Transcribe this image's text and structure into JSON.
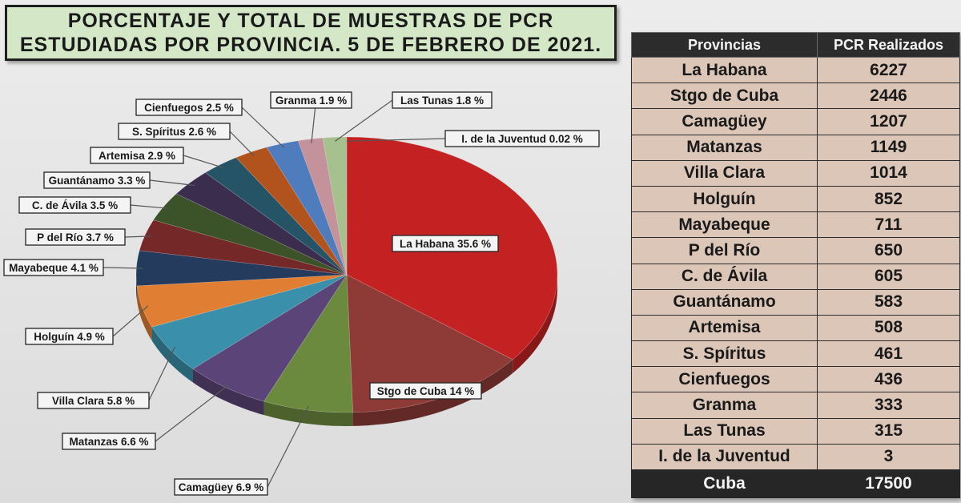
{
  "title": {
    "line1": "PORCENTAJE Y TOTAL DE MUESTRAS DE PCR",
    "line2": "ESTUDIADAS POR PROVINCIA. 5 DE FEBRERO DE 2021."
  },
  "chart_data": {
    "type": "pie",
    "title": "PORCENTAJE Y TOTAL DE MUESTRAS DE PCR ESTUDIADAS POR PROVINCIA. 5 DE FEBRERO DE 2021.",
    "slices": [
      {
        "name": "La Habana",
        "value": 35.6,
        "label": "La Habana 35.6 %",
        "color": "#c42222"
      },
      {
        "name": "Stgo de Cuba",
        "value": 14,
        "label": "Stgo de Cuba 14 %",
        "color": "#8e3a36"
      },
      {
        "name": "Camagüey",
        "value": 6.9,
        "label": "Camagüey 6.9 %",
        "color": "#6c8a3e"
      },
      {
        "name": "Matanzas",
        "value": 6.6,
        "label": "Matanzas 6.6 %",
        "color": "#5a4478"
      },
      {
        "name": "Villa Clara",
        "value": 5.8,
        "label": "Villa Clara 5.8 %",
        "color": "#3a90aa"
      },
      {
        "name": "Holguín",
        "value": 4.9,
        "label": "Holguín 4.9 %",
        "color": "#e07f33"
      },
      {
        "name": "Mayabeque",
        "value": 4.1,
        "label": "Mayabeque 4.1 %",
        "color": "#253b5e"
      },
      {
        "name": "P del Río",
        "value": 3.7,
        "label": "P del Río 3.7 %",
        "color": "#742828"
      },
      {
        "name": "C. de Ávila",
        "value": 3.5,
        "label": "C. de Ávila 3.5 %",
        "color": "#3c5228"
      },
      {
        "name": "Guantánamo",
        "value": 3.3,
        "label": "Guantánamo 3.3 %",
        "color": "#3a2d4e"
      },
      {
        "name": "Artemisa",
        "value": 2.9,
        "label": "Artemisa 2.9 %",
        "color": "#255466"
      },
      {
        "name": "S. Spíritus",
        "value": 2.6,
        "label": "S. Spíritus 2.6 %",
        "color": "#b2531d"
      },
      {
        "name": "Cienfuegos",
        "value": 2.5,
        "label": "Cienfuegos 2.5 %",
        "color": "#4f7cbc"
      },
      {
        "name": "Granma",
        "value": 1.9,
        "label": "Granma 1.9 %",
        "color": "#c4929a"
      },
      {
        "name": "Las Tunas",
        "value": 1.8,
        "label": "Las Tunas 1.8 %",
        "color": "#a6c08e"
      },
      {
        "name": "I. de la Juventud",
        "value": 0.02,
        "label": "I. de la Juventud 0.02 %",
        "color": "#8b6faa"
      }
    ]
  },
  "table": {
    "headers": [
      "Provincias",
      "PCR Realizados"
    ],
    "rows": [
      [
        "La Habana",
        "6227"
      ],
      [
        "Stgo de Cuba",
        "2446"
      ],
      [
        "Camagüey",
        "1207"
      ],
      [
        "Matanzas",
        "1149"
      ],
      [
        "Villa Clara",
        "1014"
      ],
      [
        "Holguín",
        "852"
      ],
      [
        "Mayabeque",
        "711"
      ],
      [
        "P del Río",
        "650"
      ],
      [
        "C. de Ávila",
        "605"
      ],
      [
        "Guantánamo",
        "583"
      ],
      [
        "Artemisa",
        "508"
      ],
      [
        "S. Spíritus",
        "461"
      ],
      [
        "Cienfuegos",
        "436"
      ],
      [
        "Granma",
        "333"
      ],
      [
        "Las Tunas",
        "315"
      ],
      [
        "I. de la Juventud",
        "3"
      ]
    ],
    "total": [
      "Cuba",
      "17500"
    ]
  }
}
